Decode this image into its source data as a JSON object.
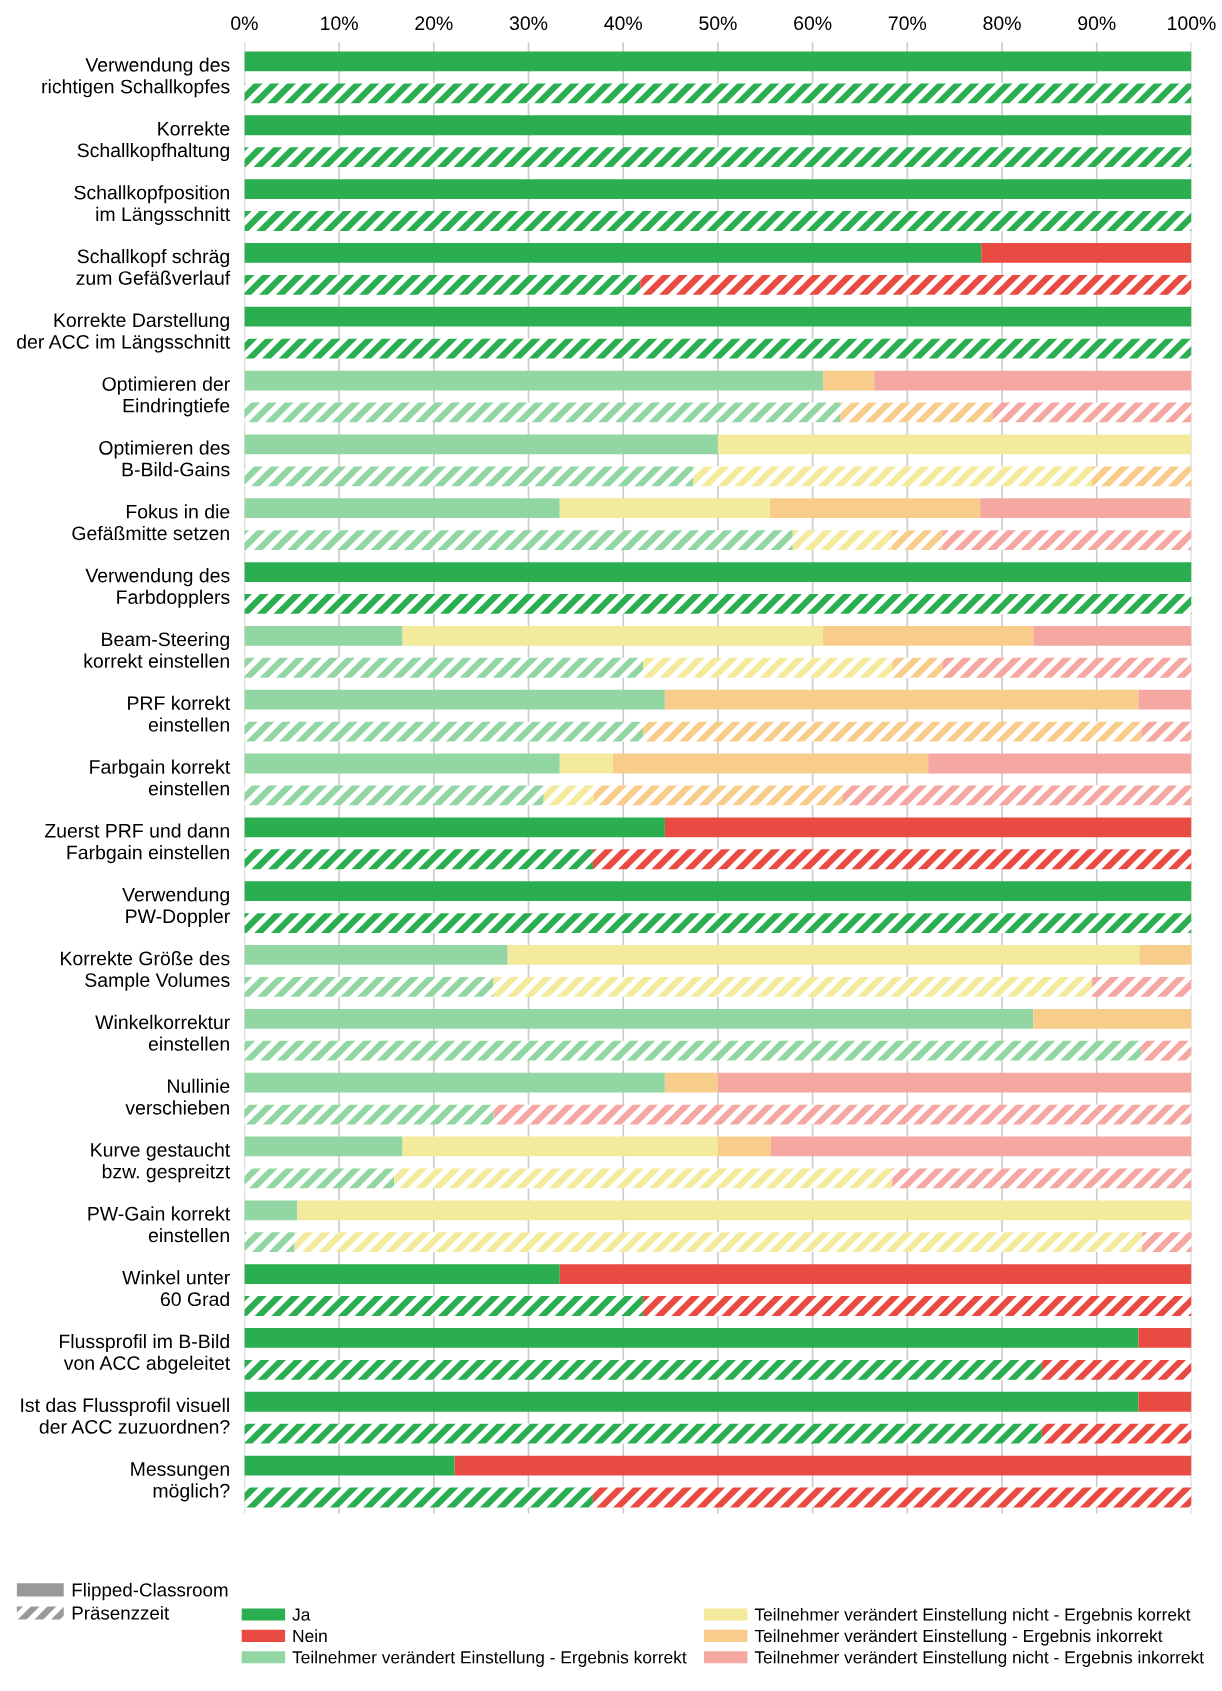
{
  "chart_data": {
    "type": "bar",
    "orientation": "horizontal",
    "stacked": true,
    "categories": [
      "Verwendung des richtigen Schallkopfes",
      null,
      "Korrekte Schallkopfhaltung",
      null,
      "Schallkopfposition im Längsschnitt",
      null,
      "Schallkopf schräg zum Gefäßverlauf",
      null,
      "Korrekte Darstellung der ACC im Längsschnitt",
      null,
      "Optimieren der Eindringtiefe",
      null,
      "Optimieren des B-Bild-Gains",
      null,
      "Fokus in die Gefäßmitte setzen",
      null,
      "Verwendung des Farbdopplers",
      null,
      "Beam-Steering korrekt einstellen",
      null,
      "PRF korrekt einstellen",
      null,
      "Farbgain korrekt einstellen",
      null,
      "Zuerst PRF und dann Farbgain einstellen",
      null,
      "Verwendung PW-Doppler",
      null,
      "Korrekte Größe des Sample Volumes",
      null,
      "Winkelkorrektur einstellen",
      null,
      "Nullinie verschieben",
      null,
      "Kurve gestaucht bzw. gespreitzt",
      null,
      "PW-Gain korrekt einstellen",
      null,
      "Winkel unter 60 Grad",
      null,
      "Flussprofil im B-Bild von ACC abgeleitet",
      null,
      "Ist das Flussprofil visuell der ACC zuzuordnen?",
      null,
      "Messungen möglich?",
      null
    ],
    "series": [
      {
        "name": "Ja",
        "color": "#2aae4f",
        "values": [
          100,
          100,
          100,
          100,
          100,
          100,
          77.8,
          41.8,
          100,
          100,
          null,
          null,
          null,
          null,
          null,
          null,
          100,
          100,
          null,
          null,
          null,
          null,
          null,
          null,
          44.4,
          36.8,
          100,
          100,
          null,
          null,
          null,
          null,
          null,
          null,
          null,
          null,
          null,
          null,
          33.3,
          42.1,
          94.4,
          84.2,
          94.4,
          84.2,
          22.2,
          36.8
        ]
      },
      {
        "name": "Teilnehmer verändert Einstellung - Ergebnis korrekt",
        "color": "#92d6a4",
        "values": [
          null,
          null,
          null,
          null,
          null,
          null,
          null,
          null,
          null,
          null,
          61.1,
          62.9,
          50,
          47.4,
          33.3,
          57.9,
          null,
          null,
          16.7,
          42.1,
          44.4,
          42.1,
          33.3,
          31.6,
          null,
          null,
          null,
          null,
          27.8,
          26.3,
          83.3,
          94.7,
          44.4,
          26.3,
          16.7,
          15.8,
          5.6,
          5.3,
          null,
          null,
          null,
          null,
          null,
          null,
          null,
          null
        ]
      },
      {
        "name": "Teilnehmer verändert Einstellung nicht - Ergebnis korrekt",
        "color": "#f4ea9c",
        "values": [
          null,
          null,
          null,
          null,
          null,
          null,
          null,
          null,
          null,
          null,
          null,
          null,
          50,
          42.1,
          22.2,
          10.5,
          null,
          null,
          44.4,
          26.3,
          null,
          null,
          5.6,
          5.3,
          null,
          null,
          null,
          null,
          66.7,
          63.2,
          null,
          null,
          null,
          null,
          33.3,
          52.6,
          94.4,
          89.5,
          null,
          null,
          null,
          null,
          null,
          null,
          null,
          null
        ]
      },
      {
        "name": "Teilnehmer verändert Einstellung - Ergebnis inkorrekt",
        "color": "#f8cd8c",
        "values": [
          null,
          null,
          null,
          null,
          null,
          null,
          null,
          null,
          null,
          null,
          5.4,
          16.1,
          null,
          10.5,
          22.2,
          5.3,
          null,
          null,
          22.2,
          5.3,
          50,
          52.6,
          33.3,
          26.3,
          null,
          null,
          null,
          null,
          5.6,
          null,
          16.7,
          null,
          5.6,
          null,
          5.6,
          null,
          null,
          null,
          null,
          null,
          null,
          null,
          null,
          null,
          null,
          null
        ]
      },
      {
        "name": "Teilnehmer verändert Einstellung nicht - Ergebnis inkorrekt",
        "color": "#f5a7a1",
        "values": [
          null,
          null,
          null,
          null,
          null,
          null,
          null,
          null,
          null,
          null,
          33.5,
          21.0,
          null,
          null,
          22.2,
          26.3,
          null,
          null,
          16.7,
          26.3,
          5.6,
          5.3,
          27.8,
          36.8,
          null,
          null,
          null,
          null,
          null,
          10.5,
          null,
          5.3,
          50,
          73.7,
          44.4,
          31.6,
          null,
          5.3,
          null,
          null,
          null,
          null,
          null,
          null,
          null,
          null
        ]
      },
      {
        "name": "Nein",
        "color": "#e94b43",
        "values": [
          null,
          null,
          null,
          null,
          null,
          null,
          22.2,
          58.2,
          null,
          null,
          null,
          null,
          null,
          null,
          null,
          null,
          null,
          null,
          null,
          null,
          null,
          null,
          null,
          null,
          55.6,
          63.2,
          null,
          null,
          null,
          null,
          null,
          null,
          null,
          null,
          null,
          null,
          null,
          null,
          66.7,
          57.9,
          5.6,
          15.8,
          5.6,
          15.8,
          77.8,
          63.2
        ]
      }
    ],
    "xlim": [
      0,
      100
    ],
    "xticks": [
      {
        "value": 0,
        "label": "0%"
      },
      {
        "value": 10,
        "label": "10%"
      },
      {
        "value": 20,
        "label": "20%"
      },
      {
        "value": 30,
        "label": "30%"
      },
      {
        "value": 40,
        "label": "40%"
      },
      {
        "value": 50,
        "label": "50%"
      },
      {
        "value": 60,
        "label": "60%"
      },
      {
        "value": 70,
        "label": "70%"
      },
      {
        "value": 80,
        "label": "80%"
      },
      {
        "value": 90,
        "label": "90%"
      },
      {
        "value": 100,
        "label": "100%"
      }
    ],
    "grid": "x",
    "legend": "bottom",
    "annotations": [
      "Flipped-Classroom",
      "Präsenzzeit"
    ]
  }
}
